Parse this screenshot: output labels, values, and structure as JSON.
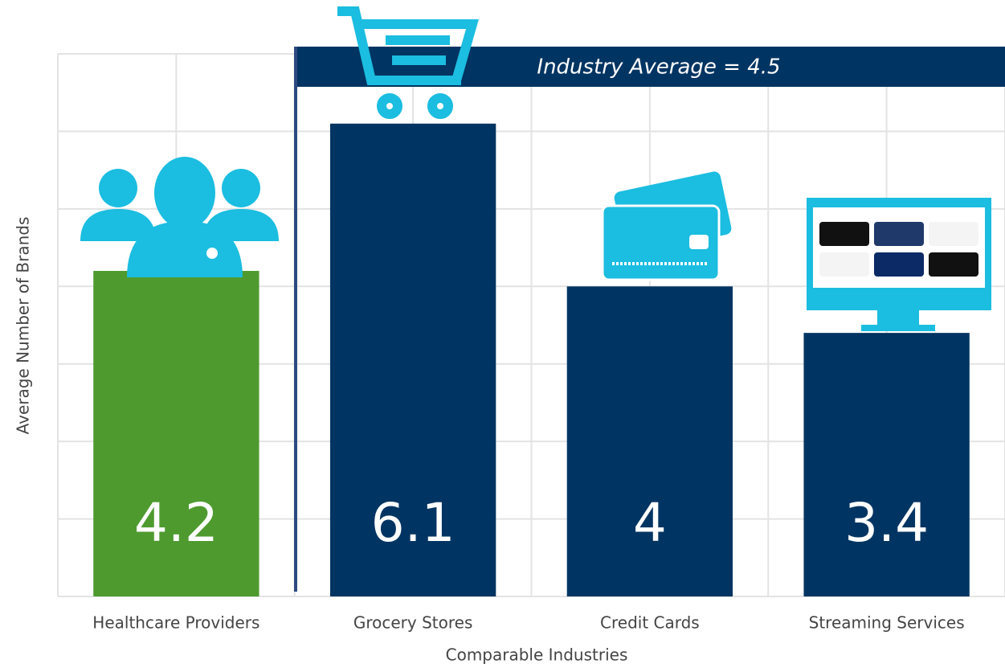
{
  "chart_data": {
    "type": "bar",
    "annotation": "Industry Average = 4.5",
    "x_label": "Comparable Industries",
    "y_label": "Average Number of Brands",
    "categories": [
      "Healthcare Providers",
      "Grocery Stores",
      "Credit Cards",
      "Streaming Services"
    ],
    "values": [
      4.2,
      6.1,
      4.0,
      3.4
    ],
    "colors": [
      "#4e9a2f",
      "#003462",
      "#003462",
      "#003462"
    ],
    "ylim": [
      0,
      7
    ],
    "yticks": [
      0,
      1,
      2,
      3,
      4,
      5,
      6,
      7
    ],
    "grid": true
  }
}
